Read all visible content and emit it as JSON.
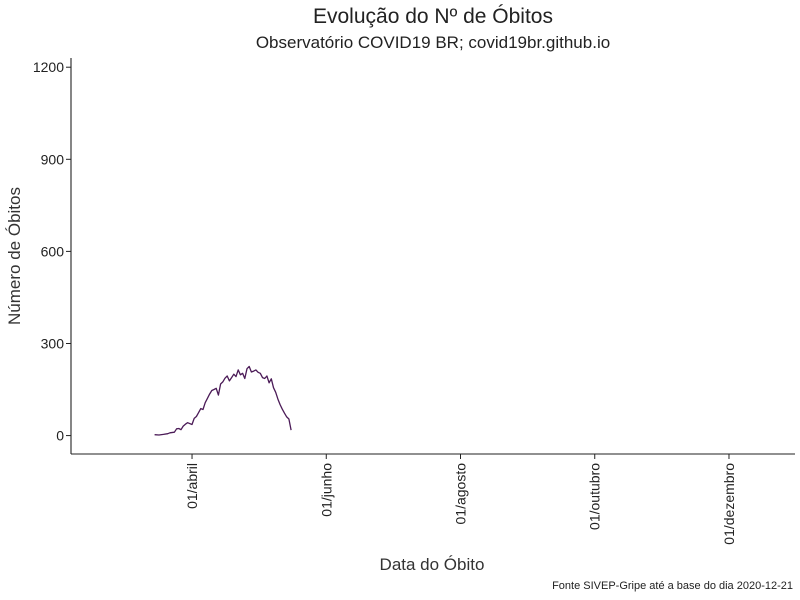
{
  "chart_data": {
    "type": "line",
    "title": "Evolução do Nº de Óbitos",
    "subtitle": "Observatório COVID19 BR; covid19br.github.io",
    "xlabel": "Data do Óbito",
    "ylabel": "Número de Óbitos",
    "caption": "Fonte  SIVEP-Gripe até a base do dia 2020-12-21",
    "x_ticks": [
      {
        "date": "2020-04-01",
        "label": "01/abril"
      },
      {
        "date": "2020-06-01",
        "label": "01/junho"
      },
      {
        "date": "2020-08-01",
        "label": "01/agosto"
      },
      {
        "date": "2020-10-01",
        "label": "01/outubro"
      },
      {
        "date": "2020-12-01",
        "label": "01/dezembro"
      }
    ],
    "xlim": [
      "2020-02-06",
      "2020-12-31"
    ],
    "y_ticks": [
      {
        "value": 0,
        "label": "0"
      },
      {
        "value": 300,
        "label": "300"
      },
      {
        "value": 600,
        "label": "600"
      },
      {
        "value": 900,
        "label": "900"
      },
      {
        "value": 1200,
        "label": "1200"
      }
    ],
    "ylim": [
      -60,
      1230
    ],
    "grid": false,
    "color": "#4b1b57",
    "series": [
      {
        "name": "",
        "x": [
          "2020-03-15",
          "2020-03-17",
          "2020-03-19",
          "2020-03-21",
          "2020-03-22",
          "2020-03-24",
          "2020-03-25",
          "2020-03-26",
          "2020-03-27",
          "2020-03-28",
          "2020-03-29",
          "2020-03-30",
          "2020-04-01",
          "2020-04-02",
          "2020-04-03",
          "2020-04-04",
          "2020-04-05",
          "2020-04-06",
          "2020-04-07",
          "2020-04-08",
          "2020-04-09",
          "2020-04-10",
          "2020-04-11",
          "2020-04-12",
          "2020-04-13",
          "2020-04-14",
          "2020-04-15",
          "2020-04-16",
          "2020-04-17",
          "2020-04-18",
          "2020-04-19",
          "2020-04-20",
          "2020-04-21",
          "2020-04-22",
          "2020-04-23",
          "2020-04-24",
          "2020-04-25",
          "2020-04-26",
          "2020-04-27",
          "2020-04-28",
          "2020-04-29",
          "2020-04-30",
          "2020-05-01",
          "2020-05-02",
          "2020-05-03",
          "2020-05-04",
          "2020-05-05",
          "2020-05-06",
          "2020-05-07",
          "2020-05-08",
          "2020-05-09",
          "2020-05-10",
          "2020-05-11",
          "2020-05-12",
          "2020-05-13",
          "2020-05-14",
          "2020-05-15",
          "2020-05-16"
        ],
        "y": [
          3,
          2,
          4,
          6,
          9,
          11,
          22,
          23,
          19,
          31,
          37,
          42,
          36,
          56,
          62,
          75,
          88,
          85,
          107,
          121,
          135,
          147,
          150,
          154,
          132,
          168,
          175,
          187,
          194,
          178,
          189,
          200,
          192,
          214,
          198,
          203,
          186,
          218,
          225,
          207,
          210,
          214,
          206,
          203,
          189,
          186,
          194,
          172,
          185,
          156,
          141,
          119,
          101,
          86,
          73,
          61,
          54,
          18
        ]
      }
    ]
  }
}
